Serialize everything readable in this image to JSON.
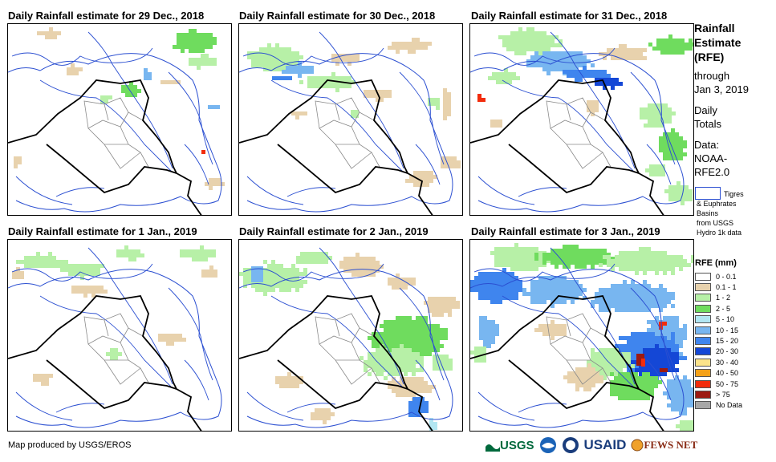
{
  "panels": [
    {
      "title": "Daily Rainfall estimate for 29 Dec., 2018"
    },
    {
      "title": "Daily Rainfall estimate for 30 Dec., 2018"
    },
    {
      "title": "Daily Rainfall estimate for 31 Dec., 2018"
    },
    {
      "title": "Daily Rainfall estimate for 1 Jan., 2019"
    },
    {
      "title": "Daily Rainfall estimate for 2 Jan., 2019"
    },
    {
      "title": "Daily Rainfall estimate for 3 Jan., 2019"
    }
  ],
  "sidebar": {
    "title_lines": [
      "Rainfall",
      "Estimate",
      "(RFE)"
    ],
    "through_lines": [
      "through",
      "Jan 3, 2019"
    ],
    "daily_lines": [
      "Daily",
      "Totals"
    ],
    "data_lines": [
      "Data:",
      "NOAA-",
      "RFE2.0"
    ],
    "basin_lines": [
      "Tigres",
      "& Euphrates",
      "Basins",
      "from USGS",
      "Hydro 1k data"
    ]
  },
  "legend": {
    "title": "RFE (mm)",
    "items": [
      {
        "label": "0 - 0.1",
        "color": "#ffffff"
      },
      {
        "label": "0.1 - 1",
        "color": "#e8d2ad"
      },
      {
        "label": "1 - 2",
        "color": "#b7f0a7"
      },
      {
        "label": "2 - 5",
        "color": "#6fdc5e"
      },
      {
        "label": "5 - 10",
        "color": "#b2e6f2"
      },
      {
        "label": "10 - 15",
        "color": "#78b6f0"
      },
      {
        "label": "15 - 20",
        "color": "#3f85ee"
      },
      {
        "label": "20 - 30",
        "color": "#1447d6"
      },
      {
        "label": "30 - 40",
        "color": "#fbe38a"
      },
      {
        "label": "40 - 50",
        "color": "#f4a118"
      },
      {
        "label": "50 - 75",
        "color": "#f22c0c"
      },
      {
        "label": "> 75",
        "color": "#9c1a12"
      },
      {
        "label": "No Data",
        "color": "#a7a7a7"
      }
    ]
  },
  "footer": {
    "credit": "Map produced by USGS/EROS"
  },
  "logos": {
    "usgs": "USGS",
    "usaid": "USAID",
    "fewsnet": "FEWS NET"
  }
}
